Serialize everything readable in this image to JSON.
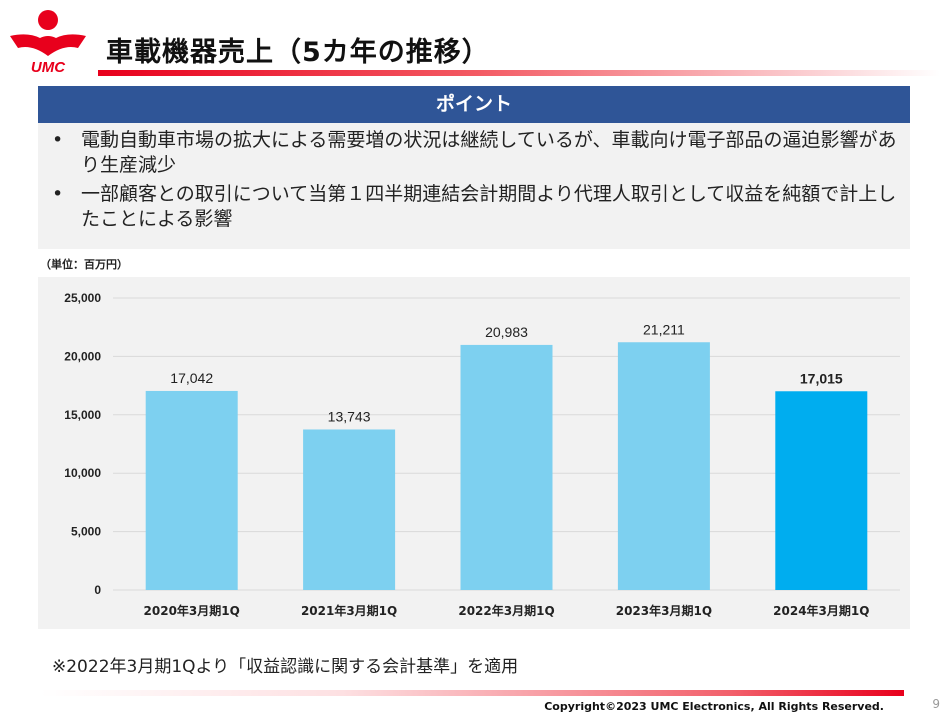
{
  "logo": {
    "text": "UMC"
  },
  "header": {
    "title": "車載機器売上（5カ年の推移）"
  },
  "point": {
    "heading": "ポイント",
    "bullets": [
      "電動自動車市場の拡大による需要増の状況は継続しているが、車載向け電子部品の逼迫影響があり生産減少",
      "一部顧客との取引について当第１四半期連結会計期間より代理人取引として収益を純額で計上したことによる影響"
    ]
  },
  "unit_label": "（単位：百万円）",
  "chart_data": {
    "type": "bar",
    "categories": [
      "2020年3月期1Q",
      "2021年3月期1Q",
      "2022年3月期1Q",
      "2023年3月期1Q",
      "2024年3月期1Q"
    ],
    "values": [
      17042,
      13743,
      20983,
      21211,
      17015
    ],
    "value_labels": [
      "17,042",
      "13,743",
      "20,983",
      "21,211",
      "17,015"
    ],
    "ylim": [
      0,
      25000
    ],
    "yticks": [
      0,
      5000,
      10000,
      15000,
      20000,
      25000
    ],
    "ytick_labels": [
      "0",
      "5,000",
      "10,000",
      "15,000",
      "20,000",
      "25,000"
    ],
    "grid": true,
    "bar_color": "#7dd0f0",
    "highlight_index": 4,
    "highlight_color": "#00adef",
    "title": "",
    "xlabel": "",
    "ylabel": ""
  },
  "note": "※2022年3月期1Qより「収益認識に関する会計基準」を適用",
  "footer": {
    "copyright": "Copyright©2023 UMC Electronics, All Rights Reserved.",
    "page": "9"
  },
  "colors": {
    "brand_red": "#e8001c",
    "header_blue": "#2f5597",
    "panel_gray": "#f2f2f2"
  }
}
